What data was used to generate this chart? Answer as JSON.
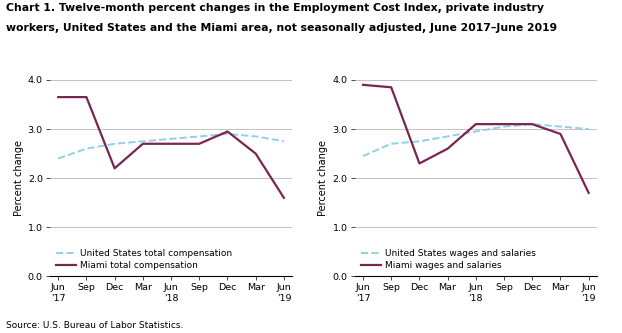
{
  "title_line1": "Chart 1. Twelve-month percent changes in the Employment Cost Index, private industry",
  "title_line2": "workers, United States and the Miami area, not seasonally adjusted, June 2017–June 2019",
  "source": "Source: U.S. Bureau of Labor Statistics.",
  "ylabel": "Percent change",
  "x_labels": [
    "Jun\n'17",
    "Sep",
    "Dec",
    "Mar",
    "Jun\n'18",
    "Sep",
    "Dec",
    "Mar",
    "Jun\n'19"
  ],
  "x_ticks": [
    0,
    1,
    2,
    3,
    4,
    5,
    6,
    7,
    8
  ],
  "ylim": [
    0.0,
    4.0
  ],
  "yticks": [
    0.0,
    1.0,
    2.0,
    3.0,
    4.0
  ],
  "left_panel": {
    "us_total_comp": [
      2.4,
      2.6,
      2.7,
      2.75,
      2.8,
      2.85,
      2.9,
      2.85,
      2.75
    ],
    "miami_total_comp": [
      3.65,
      3.65,
      2.2,
      2.7,
      2.7,
      2.7,
      2.95,
      2.5,
      1.6
    ],
    "us_label": "United States total compensation",
    "miami_label": "Miami total compensation"
  },
  "right_panel": {
    "us_wages_sal": [
      2.45,
      2.7,
      2.75,
      2.85,
      2.95,
      3.05,
      3.1,
      3.05,
      3.0
    ],
    "miami_wages_sal": [
      3.9,
      3.85,
      2.3,
      2.6,
      3.1,
      3.1,
      3.1,
      2.9,
      1.7
    ],
    "us_label": "United States wages and salaries",
    "miami_label": "Miami wages and salaries"
  },
  "us_color": "#92D0E8",
  "miami_color": "#7B2552",
  "us_linewidth": 1.4,
  "miami_linewidth": 1.6,
  "bg_color": "#FFFFFF",
  "grid_color": "#AAAAAA",
  "title_fontsize": 7.8,
  "label_fontsize": 7.0,
  "tick_fontsize": 6.8,
  "legend_fontsize": 6.5,
  "source_fontsize": 6.5
}
